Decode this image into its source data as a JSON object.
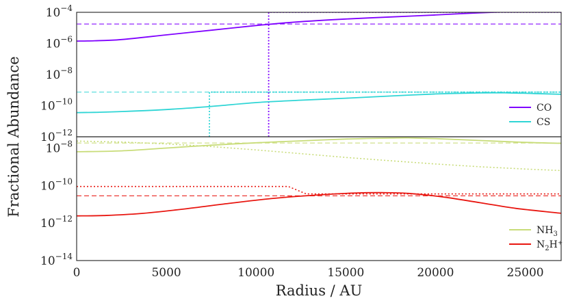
{
  "chart_data": {
    "type": "line",
    "xlabel": "Radius / AU",
    "ylabel": "Fractional Abundance",
    "xlim": [
      0,
      27000
    ],
    "x_ticks": [
      "0",
      "5000",
      "10000",
      "15000",
      "20000",
      "25000"
    ],
    "y_scale": "log",
    "panels": [
      {
        "ylim_log10": [
          -12,
          -4
        ],
        "y_ticks": [
          {
            "base": "10",
            "exp": "−4"
          },
          {
            "base": "10",
            "exp": "−6"
          },
          {
            "base": "10",
            "exp": "−8"
          },
          {
            "base": "10",
            "exp": "−10"
          },
          {
            "base": "10",
            "exp": "−12"
          }
        ],
        "legend_position": "lower-right",
        "series": [
          {
            "name": "CO",
            "legend": {
              "main": "CO",
              "sub": "",
              "sup": ""
            },
            "color": "#7f00ff",
            "model_log10": [
              [
                0,
                -5.85
              ],
              [
                1000,
                -5.83
              ],
              [
                2500,
                -5.75
              ],
              [
                5000,
                -5.45
              ],
              [
                7500,
                -5.15
              ],
              [
                10000,
                -4.85
              ],
              [
                12500,
                -4.6
              ],
              [
                15000,
                -4.43
              ],
              [
                17500,
                -4.3
              ],
              [
                20000,
                -4.17
              ],
              [
                22500,
                -4.03
              ],
              [
                25000,
                -3.93
              ],
              [
                27000,
                -3.85
              ]
            ],
            "constant_log10": -4.75,
            "step_log10": [
              [
                10700,
                -12
              ],
              [
                10700,
                -4
              ],
              [
                27000,
                -4
              ]
            ]
          },
          {
            "name": "CS",
            "legend": {
              "main": "CS",
              "sub": "",
              "sup": ""
            },
            "color": "#2ed5d5",
            "model_log10": [
              [
                0,
                -10.45
              ],
              [
                1000,
                -10.43
              ],
              [
                2500,
                -10.38
              ],
              [
                5000,
                -10.25
              ],
              [
                7500,
                -10.05
              ],
              [
                10000,
                -9.8
              ],
              [
                12500,
                -9.65
              ],
              [
                15000,
                -9.52
              ],
              [
                17500,
                -9.38
              ],
              [
                20000,
                -9.25
              ],
              [
                22500,
                -9.18
              ],
              [
                24000,
                -9.18
              ],
              [
                25500,
                -9.22
              ],
              [
                27000,
                -9.27
              ]
            ],
            "constant_log10": -9.13,
            "step_log10": [
              [
                7400,
                -12
              ],
              [
                7400,
                -9.13
              ],
              [
                27000,
                -9.13
              ]
            ]
          }
        ]
      },
      {
        "ylim_log10": [
          -14,
          -7.4
        ],
        "y_ticks": [
          {
            "base": "10",
            "exp": "−8"
          },
          {
            "base": "10",
            "exp": "−10"
          },
          {
            "base": "10",
            "exp": "−12"
          },
          {
            "base": "10",
            "exp": "−14"
          }
        ],
        "legend_position": "lower-right",
        "series": [
          {
            "name": "NH3",
            "legend": {
              "main": "NH",
              "sub": "3",
              "sup": ""
            },
            "color": "#c8dc78",
            "model_log10": [
              [
                0,
                -8.2
              ],
              [
                2500,
                -8.15
              ],
              [
                5000,
                -8.0
              ],
              [
                7500,
                -7.85
              ],
              [
                10000,
                -7.72
              ],
              [
                12500,
                -7.62
              ],
              [
                15000,
                -7.52
              ],
              [
                17500,
                -7.47
              ],
              [
                18500,
                -7.46
              ],
              [
                20000,
                -7.5
              ],
              [
                22500,
                -7.6
              ],
              [
                25000,
                -7.7
              ],
              [
                27000,
                -7.75
              ]
            ],
            "constant_log10": -7.73,
            "depletion_log10": [
              [
                0,
                -7.63
              ],
              [
                2500,
                -7.68
              ],
              [
                5000,
                -7.78
              ],
              [
                7500,
                -7.92
              ],
              [
                10000,
                -8.1
              ],
              [
                12500,
                -8.3
              ],
              [
                15000,
                -8.5
              ],
              [
                17500,
                -8.68
              ],
              [
                20000,
                -8.85
              ],
              [
                22500,
                -9.0
              ],
              [
                25000,
                -9.12
              ],
              [
                27000,
                -9.2
              ]
            ]
          },
          {
            "name": "N2H+",
            "legend": {
              "main": "N",
              "sub": "2",
              "sup": "H⁺"
            },
            "color": "#e8150f",
            "model_log10": [
              [
                0,
                -11.62
              ],
              [
                1500,
                -11.6
              ],
              [
                3500,
                -11.5
              ],
              [
                6000,
                -11.25
              ],
              [
                8500,
                -10.95
              ],
              [
                11000,
                -10.68
              ],
              [
                13500,
                -10.5
              ],
              [
                15500,
                -10.4
              ],
              [
                17000,
                -10.38
              ],
              [
                18500,
                -10.42
              ],
              [
                20500,
                -10.62
              ],
              [
                22500,
                -10.92
              ],
              [
                24500,
                -11.22
              ],
              [
                27000,
                -11.48
              ]
            ],
            "constant_log10": -10.55,
            "depletion_log10": [
              [
                0,
                -10.05
              ],
              [
                11800,
                -10.05
              ],
              [
                12800,
                -10.45
              ],
              [
                27000,
                -10.45
              ]
            ]
          }
        ]
      }
    ]
  }
}
